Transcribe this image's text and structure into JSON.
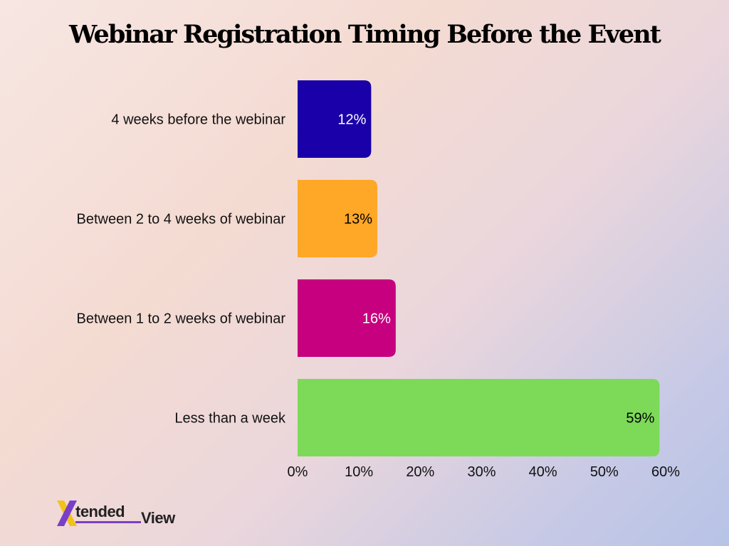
{
  "title": "Webinar Registration Timing Before the Event",
  "logo": {
    "main": "tended",
    "sub": "View"
  },
  "chart_data": {
    "type": "bar",
    "orientation": "horizontal",
    "title": "Webinar Registration Timing Before the Event",
    "categories": [
      "4 weeks before the webinar",
      "Between 2 to 4 weeks of webinar",
      "Between 1 to 2 weeks of webinar",
      "Less than a week"
    ],
    "values": [
      12,
      13,
      16,
      59
    ],
    "data_labels": [
      "12%",
      "13%",
      "16%",
      "59%"
    ],
    "colors": [
      "#1a00a8",
      "#ffa726",
      "#c6007e",
      "#7dda58"
    ],
    "label_colors": [
      "#ffffff",
      "#000000",
      "#ffffff",
      "#000000"
    ],
    "xlim": [
      0,
      60
    ],
    "x_ticks": [
      0,
      10,
      20,
      30,
      40,
      50,
      60
    ],
    "x_tick_labels": [
      "0%",
      "10%",
      "20%",
      "30%",
      "40%",
      "50%",
      "60%"
    ],
    "grid": false,
    "legend": "none"
  }
}
